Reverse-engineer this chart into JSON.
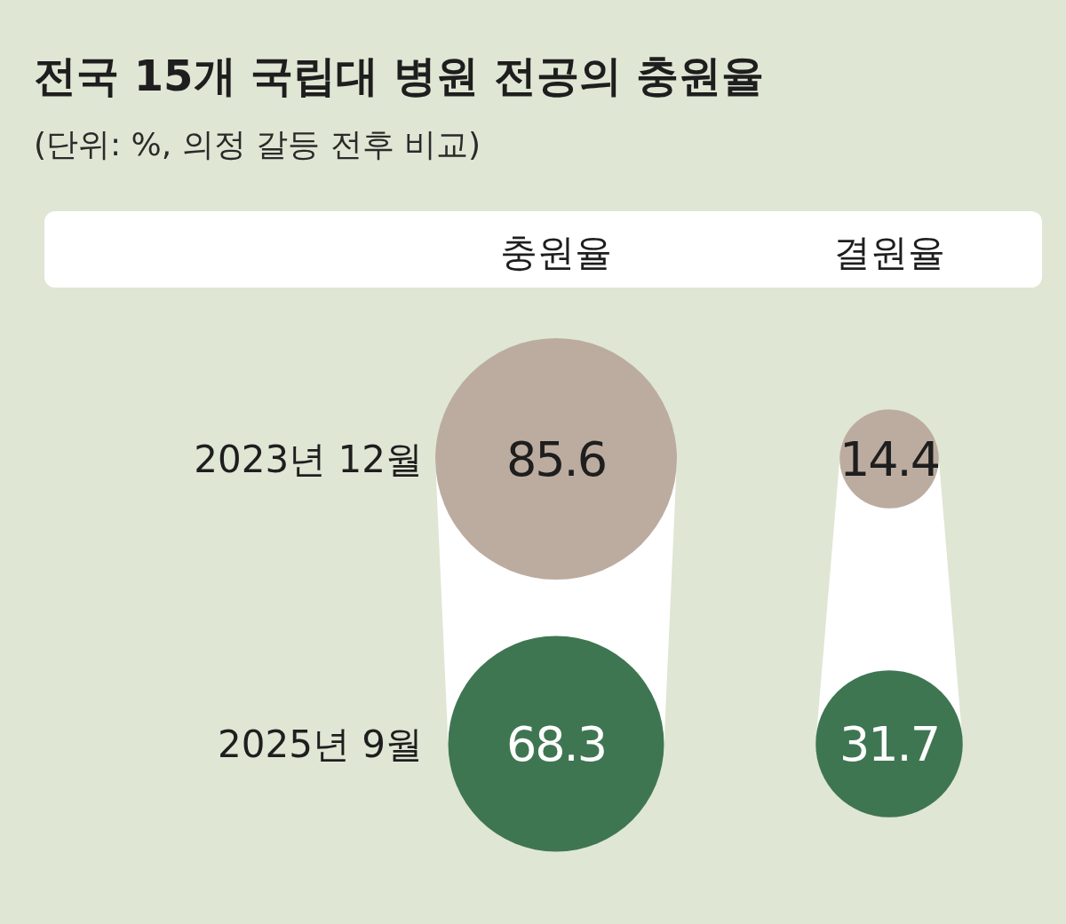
{
  "chart_data": {
    "type": "other",
    "title": "전국 15개 국립대 병원 전공의 충원율",
    "subtitle": "(단위: %, 의정 갈등 전후 비교)",
    "categories": [
      "충원율",
      "결원율"
    ],
    "series": [
      {
        "name": "2023년 12월",
        "color": "#bcaca0",
        "values": [
          85.6,
          14.4
        ]
      },
      {
        "name": "2025년 9월",
        "color": "#3f7652",
        "values": [
          68.3,
          31.7
        ]
      }
    ],
    "data_labels": true
  }
}
